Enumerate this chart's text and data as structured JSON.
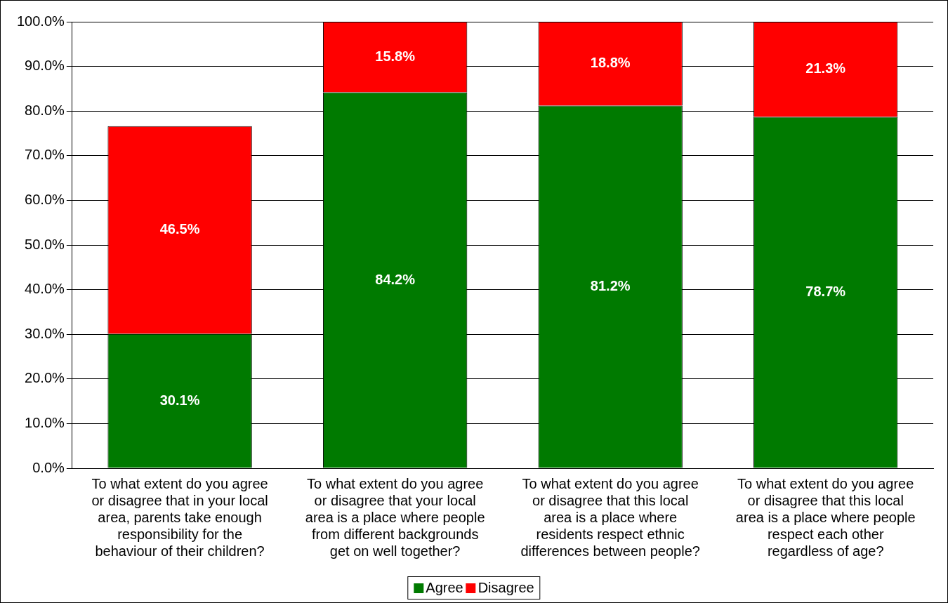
{
  "chart_data": {
    "type": "bar",
    "stacked": true,
    "categories": [
      "To what extent do you agree or disagree that in your local area, parents take enough responsibility for the behaviour of their children?",
      "To what extent do you agree or disagree that your local area is a place where people from different backgrounds get on well together?",
      "To what extent do you agree or disagree that this local area is a place where residents respect ethnic differences between people?",
      "To what extent do you agree or disagree that this local area is a place where people respect each other regardless of age?"
    ],
    "series": [
      {
        "name": "Agree",
        "color": "#007a00",
        "values": [
          30.1,
          84.2,
          81.2,
          78.7
        ],
        "value_labels": [
          "30.1%",
          "84.2%",
          "81.2%",
          "78.7%"
        ]
      },
      {
        "name": "Disagree",
        "color": "#ff0000",
        "values": [
          46.5,
          15.8,
          18.8,
          21.3
        ],
        "value_labels": [
          "46.5%",
          "15.8%",
          "18.8%",
          "21.3%"
        ]
      }
    ],
    "ylim": [
      0,
      100
    ],
    "yticks": [
      {
        "value": 0,
        "label": "0.0%"
      },
      {
        "value": 10,
        "label": "10.0%"
      },
      {
        "value": 20,
        "label": "20.0%"
      },
      {
        "value": 30,
        "label": "30.0%"
      },
      {
        "value": 40,
        "label": "40.0%"
      },
      {
        "value": 50,
        "label": "50.0%"
      },
      {
        "value": 60,
        "label": "60.0%"
      },
      {
        "value": 70,
        "label": "70.0%"
      },
      {
        "value": 80,
        "label": "80.0%"
      },
      {
        "value": 90,
        "label": "90.0%"
      },
      {
        "value": 100,
        "label": "100.0%"
      }
    ],
    "grid": "y",
    "legend": "bottom"
  }
}
